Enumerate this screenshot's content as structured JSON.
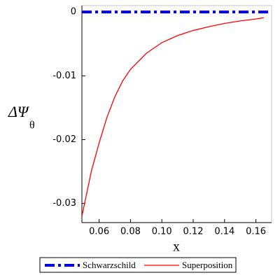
{
  "chart_data": {
    "type": "line",
    "xlabel": "x",
    "ylabel": "ΔΨ",
    "ylabel_subscript": "θ",
    "xlim": [
      0.049,
      0.17
    ],
    "ylim": [
      -0.033,
      0.001
    ],
    "xticks": [
      0.06,
      0.08,
      {
        "value": 0.1,
        "label": "0.10"
      },
      0.12,
      0.14,
      0.16
    ],
    "yticks": [
      0,
      -0.01,
      -0.02,
      -0.03
    ],
    "legend": "bottom",
    "series": [
      {
        "name": "Schwarzschild",
        "color": "#0000ff",
        "dash": "dashdot",
        "x": [
          0.049,
          0.17
        ],
        "values": [
          0,
          0
        ]
      },
      {
        "name": "Superposition",
        "color": "#ff0000",
        "dash": "solid",
        "x": [
          0.049,
          0.052,
          0.055,
          0.06,
          0.065,
          0.07,
          0.075,
          0.08,
          0.09,
          0.1,
          0.11,
          0.12,
          0.13,
          0.14,
          0.15,
          0.16,
          0.165
        ],
        "values": [
          -0.032,
          -0.0285,
          -0.025,
          -0.0205,
          -0.0165,
          -0.0133,
          -0.0108,
          -0.009,
          -0.0065,
          -0.0048,
          -0.0037,
          -0.0029,
          -0.0023,
          -0.0018,
          -0.0014,
          -0.0011,
          -0.0009
        ]
      }
    ]
  }
}
